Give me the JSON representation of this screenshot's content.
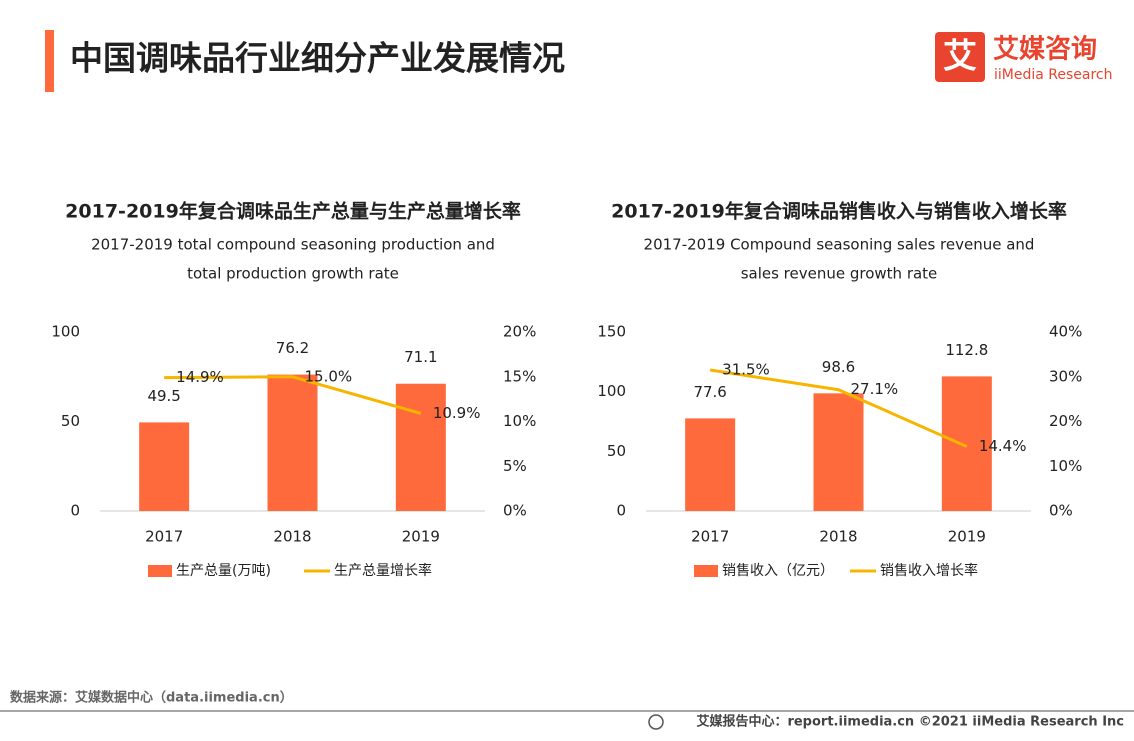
{
  "header": {
    "title": "中国调味品行业细分产业发展情况",
    "logo_mark": "艾",
    "logo_cn": "艾媒咨询",
    "logo_en": "iiMedia Research"
  },
  "chart_data": [
    {
      "type": "bar",
      "title": "2017-2019年复合调味品生产总量与生产总量增长率",
      "subtitle": [
        "2017-2019 total compound seasoning production and",
        "total production growth rate"
      ],
      "categories": [
        "2017",
        "2018",
        "2019"
      ],
      "series": [
        {
          "name": "生产总量(万吨)",
          "type": "bar",
          "color": "#ff6a3d",
          "values": [
            49.5,
            76.2,
            71.1
          ]
        },
        {
          "name": "生产总量增长率",
          "type": "line",
          "axis": "y2",
          "color": "#f7b500",
          "values": [
            14.9,
            15.0,
            10.9
          ],
          "value_labels": [
            "14.9%",
            "15.0%",
            "10.9%"
          ]
        }
      ],
      "ylim": [
        0,
        100
      ],
      "yticks": [
        0,
        50,
        100
      ],
      "y2lim": [
        0,
        20
      ],
      "y2ticks": [
        {
          "value": 0,
          "label": "0%"
        },
        {
          "value": 5,
          "label": "5%"
        },
        {
          "value": 10,
          "label": "10%"
        },
        {
          "value": 15,
          "label": "15%"
        },
        {
          "value": 20,
          "label": "20%"
        }
      ],
      "grid": false
    },
    {
      "type": "bar",
      "title": "2017-2019年复合调味品销售收入与销售收入增长率",
      "subtitle": [
        "2017-2019 Compound seasoning sales revenue and",
        "sales revenue growth rate"
      ],
      "categories": [
        "2017",
        "2018",
        "2019"
      ],
      "series": [
        {
          "name": "销售收入（亿元）",
          "type": "bar",
          "color": "#ff6a3d",
          "values": [
            77.6,
            98.6,
            112.8
          ]
        },
        {
          "name": "销售收入增长率",
          "type": "line",
          "axis": "y2",
          "color": "#f7b500",
          "values": [
            31.5,
            27.1,
            14.4
          ],
          "value_labels": [
            "31.5%",
            "27.1%",
            "14.4%"
          ]
        }
      ],
      "ylim": [
        0,
        150
      ],
      "yticks": [
        0,
        50,
        100,
        150
      ],
      "y2lim": [
        0,
        40
      ],
      "y2ticks": [
        {
          "value": 0,
          "label": "0%"
        },
        {
          "value": 10,
          "label": "10%"
        },
        {
          "value": 20,
          "label": "20%"
        },
        {
          "value": 30,
          "label": "30%"
        },
        {
          "value": 40,
          "label": "40%"
        }
      ],
      "grid": false
    }
  ],
  "footer": {
    "source": "数据来源：艾媒数据中心（data.iimedia.cn）",
    "credit": "艾媒报告中心：report.iimedia.cn  ©2021  iiMedia Research  Inc"
  }
}
